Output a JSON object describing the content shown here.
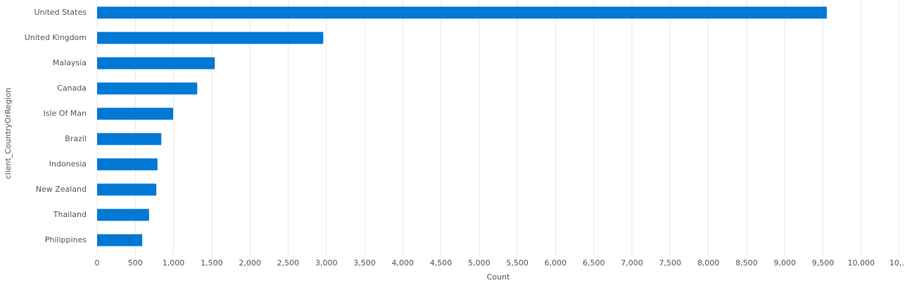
{
  "chart_data": {
    "type": "hbar",
    "categories": [
      "United States",
      "United Kingdom",
      "Malaysia",
      "Canada",
      "Isle Of Man",
      "Brazil",
      "Indonesia",
      "New Zealand",
      "Thailand",
      "Philippines"
    ],
    "values": [
      9550,
      2960,
      1540,
      1310,
      995,
      840,
      790,
      775,
      680,
      590
    ],
    "color": "#0078d4",
    "x_label": "Count",
    "y_label": "client_CountryOrRegion",
    "xlim": [
      0,
      10500
    ],
    "xticks": [
      0,
      500,
      {
        "value": 1000,
        "label": "1,000"
      },
      {
        "value": 1500,
        "label": "1,500"
      },
      {
        "value": 2000,
        "label": "2,000"
      },
      {
        "value": 2500,
        "label": "2,500"
      },
      {
        "value": 3000,
        "label": "3,000"
      },
      {
        "value": 3500,
        "label": "3,500"
      },
      {
        "value": 4000,
        "label": "4,000"
      },
      {
        "value": 4500,
        "label": "4,500"
      },
      {
        "value": 5000,
        "label": "5,000"
      },
      {
        "value": 5500,
        "label": "5,500"
      },
      {
        "value": 6000,
        "label": "6,000"
      },
      {
        "value": 6500,
        "label": "6,500"
      },
      {
        "value": 7000,
        "label": "7,000"
      },
      {
        "value": 7500,
        "label": "7,500"
      },
      {
        "value": 8000,
        "label": "8,000"
      },
      {
        "value": 8500,
        "label": "8,500"
      },
      {
        "value": 9000,
        "label": "9,000"
      },
      {
        "value": 9500,
        "label": "9,500"
      },
      {
        "value": 10000,
        "label": "10,000"
      },
      {
        "value": 10500,
        "label": "10,…"
      }
    ],
    "grid": true
  }
}
